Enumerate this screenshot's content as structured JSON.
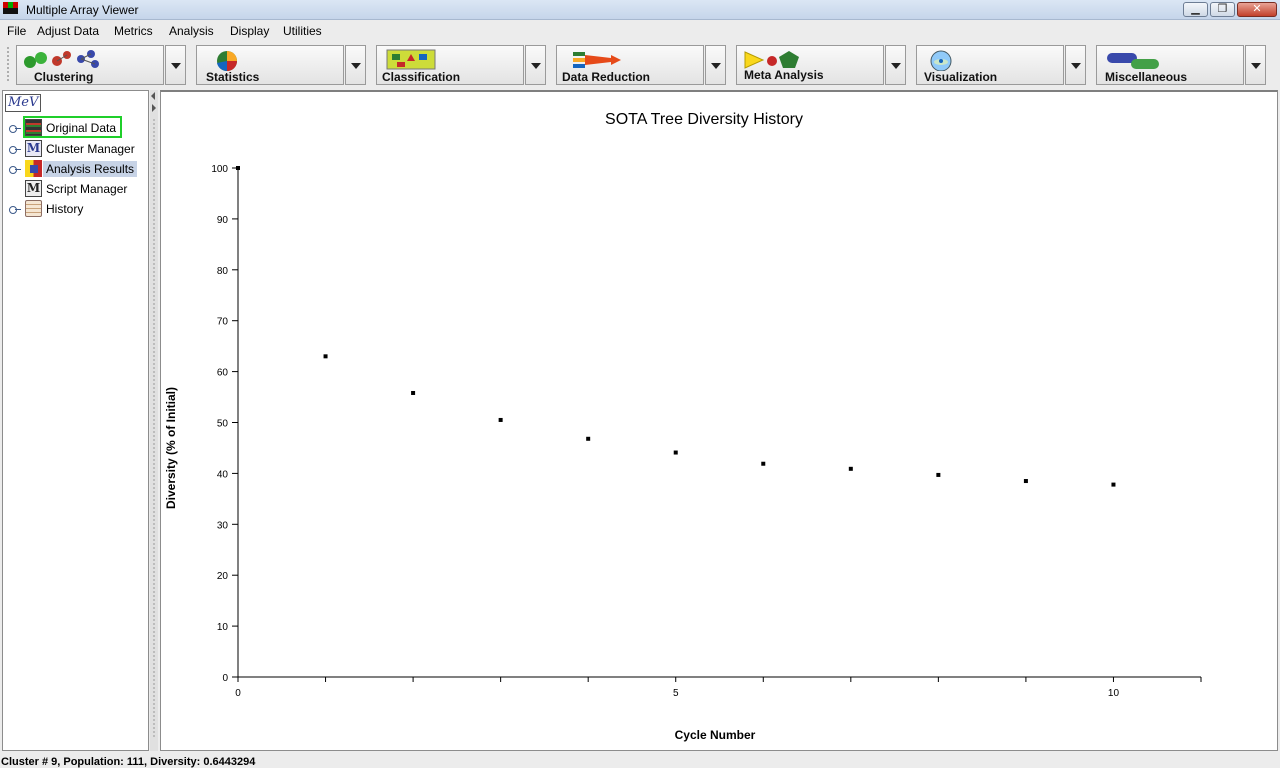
{
  "window": {
    "title": "Multiple Array Viewer"
  },
  "menu": [
    "File",
    "Adjust Data",
    "Metrics",
    "Analysis",
    "Display",
    "Utilities"
  ],
  "toolbar": [
    {
      "label": "Clustering",
      "icon": "clustering-icon"
    },
    {
      "label": "Statistics",
      "icon": "statistics-icon"
    },
    {
      "label": "Classification",
      "icon": "classification-icon"
    },
    {
      "label": "Data Reduction",
      "icon": "data-reduction-icon"
    },
    {
      "label": "Meta Analysis",
      "icon": "meta-analysis-icon"
    },
    {
      "label": "Visualization",
      "icon": "visualization-icon"
    },
    {
      "label": "Miscellaneous",
      "icon": "miscellaneous-icon"
    }
  ],
  "sidebar": {
    "logo": "MeV",
    "items": [
      {
        "label": "Original Data",
        "icon": "original-data-icon",
        "expandable": true,
        "highlighted": true
      },
      {
        "label": "Cluster Manager",
        "icon": "cluster-manager-icon",
        "expandable": true
      },
      {
        "label": "Analysis Results",
        "icon": "analysis-results-icon",
        "expandable": true,
        "selected": true
      },
      {
        "label": "Script Manager",
        "icon": "script-manager-icon",
        "expandable": false
      },
      {
        "label": "History",
        "icon": "history-icon",
        "expandable": true
      }
    ]
  },
  "chart_data": {
    "type": "scatter",
    "title": "SOTA Tree Diversity History",
    "xlabel": "Cycle Number",
    "ylabel": "Diversity (% of Initial)",
    "x": [
      0,
      1,
      2,
      3,
      4,
      5,
      6,
      7,
      8,
      9,
      10
    ],
    "y": [
      100,
      63,
      55.8,
      50.5,
      46.8,
      44.1,
      41.9,
      40.9,
      39.7,
      38.5,
      37.8
    ],
    "xlim": [
      0,
      11
    ],
    "ylim": [
      0,
      100
    ],
    "xticks": [
      0,
      1,
      2,
      3,
      4,
      5,
      6,
      7,
      8,
      9,
      10,
      11
    ],
    "xtick_labels": [
      "0",
      "",
      "",
      "",
      "",
      "5",
      "",
      "",
      "",
      "",
      "10",
      ""
    ],
    "yticks": [
      0,
      10,
      20,
      30,
      40,
      50,
      60,
      70,
      80,
      90,
      100
    ],
    "grid": false,
    "marker_color": "#000000"
  },
  "status": "Cluster # 9,  Population: 111,  Diversity: 0.6443294"
}
